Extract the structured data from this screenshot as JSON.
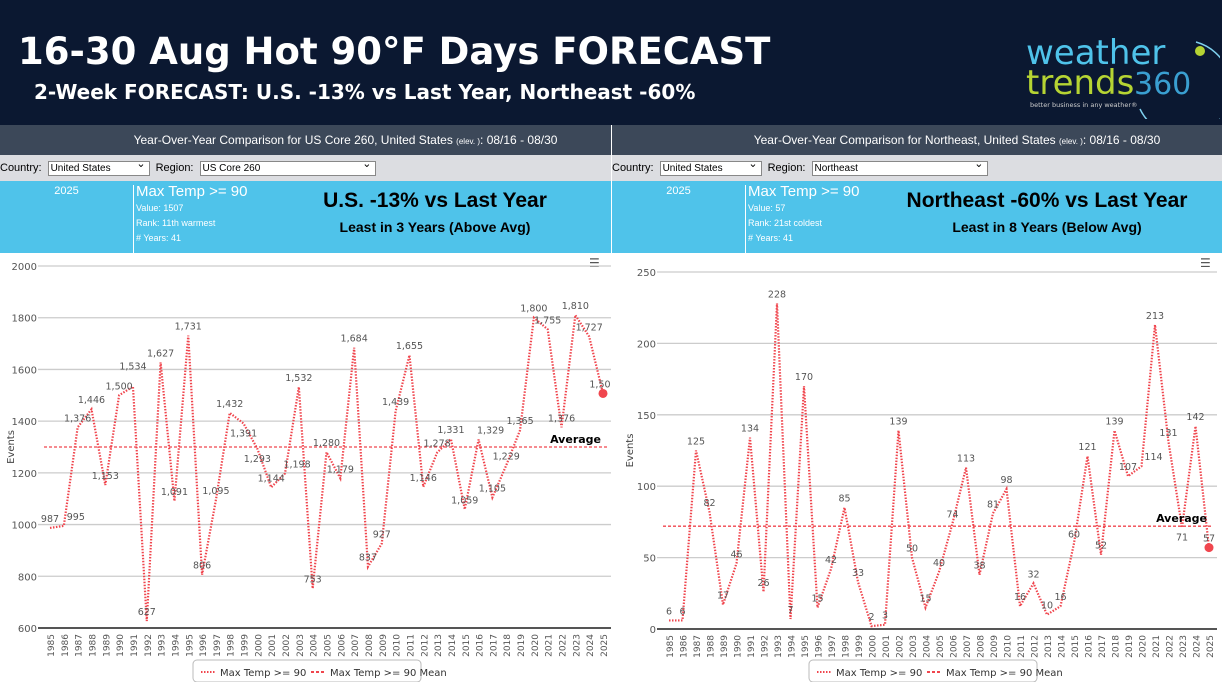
{
  "header": {
    "title": "16-30 Aug Hot 90°F Days FORECAST",
    "subtitle": "2-Week FORECAST:  U.S. -13% vs Last Year, Northeast -60%",
    "logo": {
      "line1": "weather",
      "line2": "trends",
      "num": "360",
      "tagline": "better business in any weather®"
    }
  },
  "colors": {
    "header_bg": "#0b1831",
    "info_bg": "#4fc3ea",
    "series": "#f0464e",
    "logo_cyan": "#4fc3ea",
    "logo_lime": "#b6d433"
  },
  "panels": [
    {
      "bar_title": "Year-Over-Year Comparison for US Core 260, United States ",
      "elev": "(elev. )",
      "dates": ": 08/16 - 08/30",
      "country_label": "Country:",
      "country": "United States",
      "region_label": "Region:",
      "region": "US Core 260",
      "year": "2025",
      "metric": "Max Temp >= 90",
      "value": "Value: 1507",
      "rank": "Rank: 11th warmest",
      "years": "# Years: 41",
      "headline": "U.S. -13% vs Last Year",
      "subheadline": "Least in 3 Years (Above Avg)"
    },
    {
      "bar_title": "Year-Over-Year Comparison for Northeast, United States ",
      "elev": "(elev. )",
      "dates": ": 08/16 - 08/30",
      "country_label": "Country:",
      "country": "United States",
      "region_label": "Region:",
      "region": "Northeast",
      "year": "2025",
      "metric": "Max Temp >= 90",
      "value": "Value: 57",
      "rank": "Rank: 21st coldest",
      "years": "# Years: 41",
      "headline": "Northeast -60% vs Last Year",
      "subheadline": "Least in 8 Years (Below Avg)"
    }
  ],
  "chart_data": [
    {
      "type": "line",
      "ylabel": "Events",
      "ylim": [
        600,
        2000
      ],
      "yticks": [
        600,
        800,
        1000,
        1200,
        1400,
        1600,
        1800,
        2000
      ],
      "grid": true,
      "legend": "bottom",
      "x": [
        1985,
        1986,
        1987,
        1988,
        1989,
        1990,
        1991,
        1992,
        1993,
        1994,
        1995,
        1996,
        1997,
        1998,
        1999,
        2000,
        2001,
        2002,
        2003,
        2004,
        2005,
        2006,
        2007,
        2008,
        2009,
        2010,
        2011,
        2012,
        2013,
        2014,
        2015,
        2016,
        2017,
        2018,
        2019,
        2020,
        2021,
        2022,
        2023,
        2024,
        2025
      ],
      "series": [
        {
          "name": "Max Temp >= 90",
          "values": [
            987,
            995,
            1376,
            1446,
            1153,
            1500,
            1534,
            627,
            1627,
            1091,
            1731,
            806,
            1095,
            1432,
            1391,
            1293,
            1144,
            1198,
            1532,
            753,
            1280,
            1179,
            1684,
            837,
            927,
            1439,
            1655,
            1146,
            1278,
            1331,
            1059,
            1329,
            1105,
            1229,
            1365,
            1800,
            1755,
            1376,
            1810,
            1727,
            1507
          ]
        },
        {
          "name": "Max Temp >= 90 Mean",
          "value": 1300
        }
      ],
      "annotation": "Average"
    },
    {
      "type": "line",
      "ylabel": "Events",
      "ylim": [
        0,
        250
      ],
      "yticks": [
        0,
        50,
        100,
        150,
        200,
        250
      ],
      "grid": true,
      "legend": "bottom",
      "x": [
        1985,
        1986,
        1987,
        1988,
        1989,
        1990,
        1991,
        1992,
        1993,
        1994,
        1995,
        1996,
        1997,
        1998,
        1999,
        2000,
        2001,
        2002,
        2003,
        2004,
        2005,
        2006,
        2007,
        2008,
        2009,
        2010,
        2011,
        2012,
        2013,
        2014,
        2015,
        2016,
        2017,
        2018,
        2019,
        2020,
        2021,
        2022,
        2023,
        2024,
        2025
      ],
      "series": [
        {
          "name": "Max Temp >= 90",
          "values": [
            6,
            6,
            125,
            82,
            17,
            46,
            134,
            26,
            228,
            7,
            170,
            15,
            42,
            85,
            33,
            2,
            3,
            139,
            50,
            15,
            40,
            74,
            113,
            38,
            81,
            98,
            16,
            32,
            10,
            16,
            60,
            121,
            52,
            139,
            107,
            114,
            213,
            131,
            71,
            142,
            57
          ]
        },
        {
          "name": "Max Temp >= 90 Mean",
          "value": 72
        }
      ],
      "annotation": "Average"
    }
  ]
}
